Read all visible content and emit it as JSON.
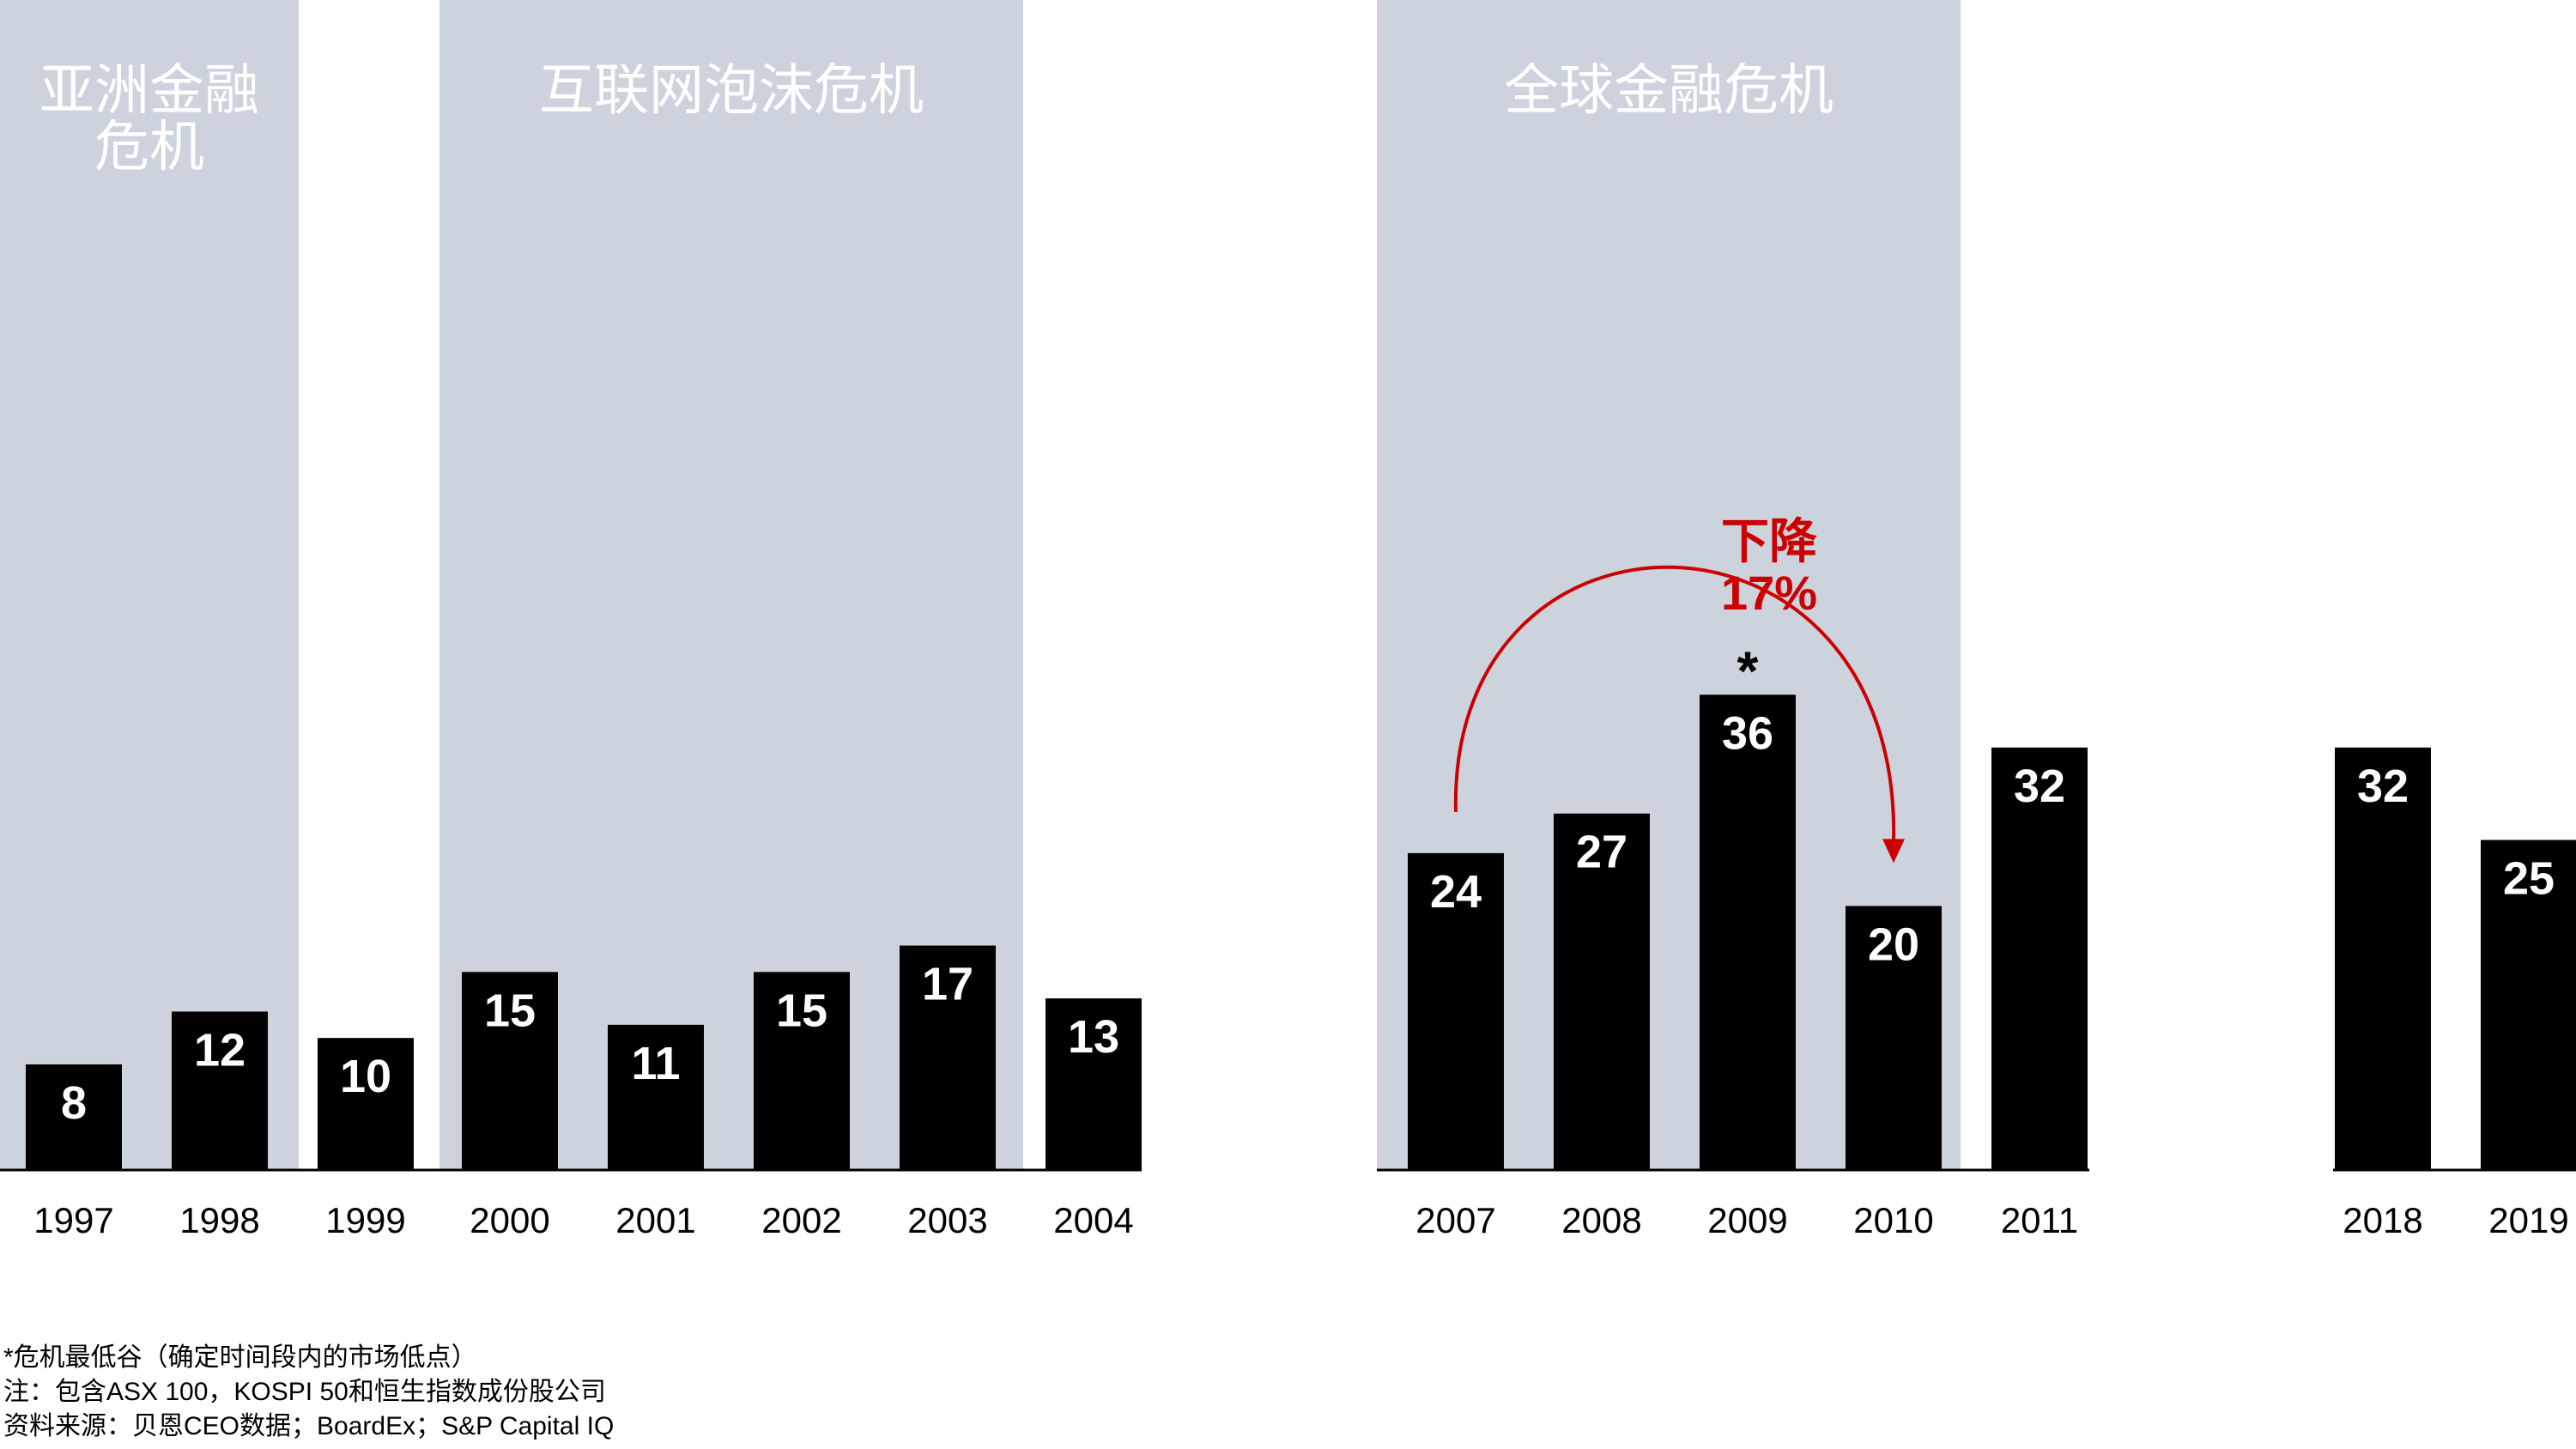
{
  "chart_data": {
    "type": "bar",
    "title": "",
    "xlabel": "",
    "ylabel": "",
    "ylim": [
      0,
      36
    ],
    "grid": false,
    "legend": "none",
    "categories": [
      "1997",
      "1998",
      "1999",
      "2000",
      "2001",
      "2002",
      "2003",
      "2004",
      "2007",
      "2008",
      "2009",
      "2010",
      "2011",
      "2018",
      "2019"
    ],
    "values": [
      8,
      12,
      10,
      15,
      11,
      15,
      17,
      13,
      24,
      27,
      36,
      20,
      32,
      32,
      25
    ],
    "value_labels": [
      "8",
      "12",
      "10",
      "15",
      "11",
      "15",
      "17",
      "13",
      "24",
      "27",
      "36",
      "20",
      "32",
      "32",
      "25"
    ],
    "crisis_bands": [
      {
        "label": "亚洲金融\n危机",
        "from": "1997",
        "to": "1998"
      },
      {
        "label": "互联网泡沫危机",
        "from": "2000",
        "to": "2003"
      },
      {
        "label": "全球金融危机",
        "from": "2007",
        "to": "2010"
      }
    ],
    "annotations": {
      "trough_marker": {
        "label": "*",
        "category": "2009"
      },
      "decline_arrow": {
        "from": "2007",
        "to": "2010",
        "label_line1": "下降",
        "label_line2": "17%"
      }
    },
    "colors": {
      "bar": "#000000",
      "bar_label": "#ffffff",
      "band": "#ccd3dd",
      "arrow": "#cc0000",
      "text": "#000000"
    }
  },
  "footnotes": {
    "asterisk": "*危机最低谷（确定时间段内的市场低点）",
    "note": "注：包含ASX 100，KOSPI 50和恒生指数成份股公司",
    "source": "资料来源：贝恩CEO数据；BoardEx；S&P Capital IQ"
  }
}
